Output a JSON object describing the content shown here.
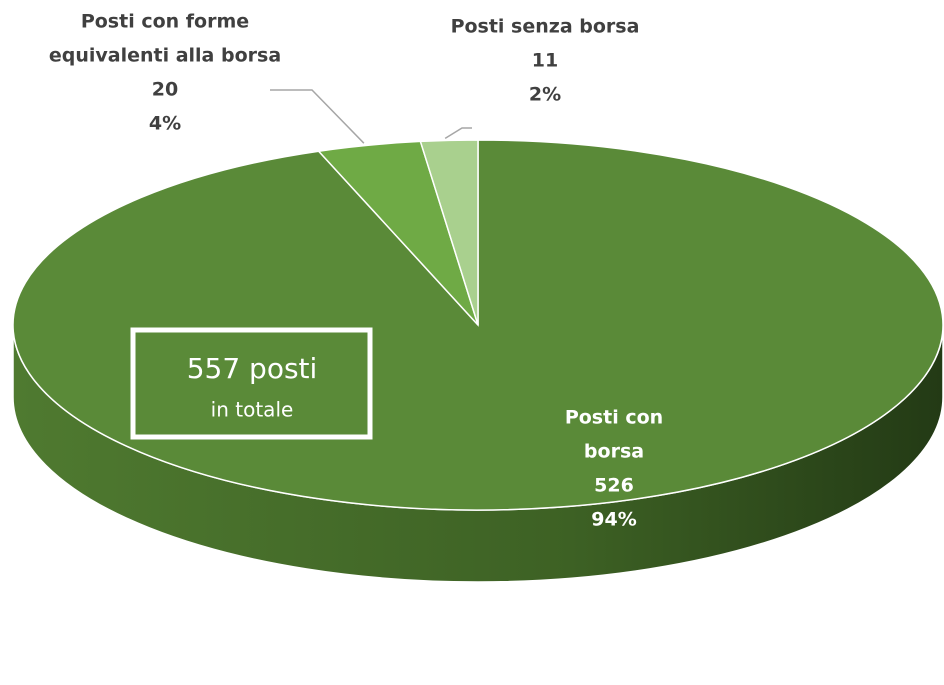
{
  "chart_data": {
    "type": "pie3d",
    "categories": [
      "Posti con borsa",
      "Posti con forme equivalenti alla borsa",
      "Posti senza borsa"
    ],
    "category_lines": [
      [
        "Posti con",
        "borsa"
      ],
      [
        "Posti con forme",
        "equivalenti alla borsa"
      ],
      [
        "Posti senza borsa"
      ]
    ],
    "values": [
      526,
      20,
      11
    ],
    "percent_labels": [
      "94%",
      "4%",
      "2%"
    ],
    "colors": [
      "#5a8a38",
      "#6faa45",
      "#a9d08e"
    ],
    "annotation": [
      "557 posti",
      "in totale"
    ]
  }
}
